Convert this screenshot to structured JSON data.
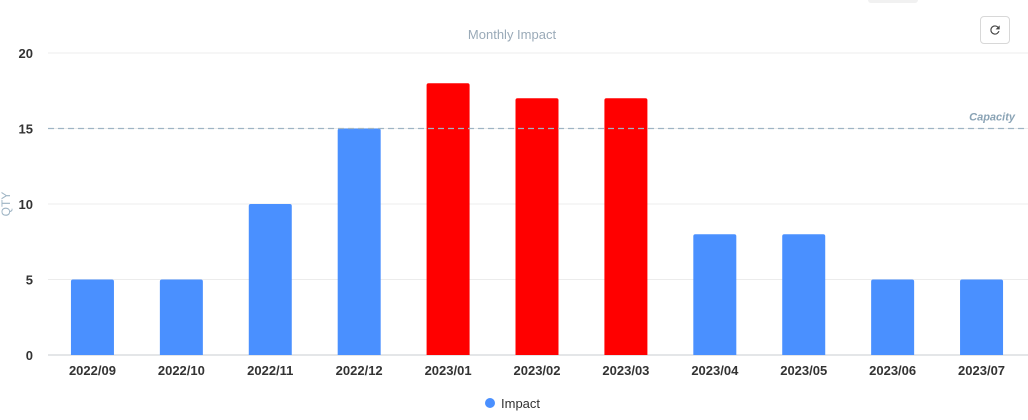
{
  "toolbar": {
    "refresh_icon": "refresh-icon"
  },
  "chart_data": {
    "type": "bar",
    "title": "Monthly Impact",
    "xlabel": "",
    "ylabel": "QTY",
    "categories": [
      "2022/09",
      "2022/10",
      "2022/11",
      "2022/12",
      "2023/01",
      "2023/02",
      "2023/03",
      "2023/04",
      "2023/05",
      "2023/06",
      "2023/07"
    ],
    "series": [
      {
        "name": "Impact",
        "values": [
          5,
          5,
          10,
          15,
          18,
          17,
          17,
          8,
          8,
          5,
          5
        ]
      }
    ],
    "ylim": [
      0,
      20
    ],
    "yticks": [
      0,
      5,
      10,
      15,
      20
    ],
    "reference_line": {
      "label": "Capacity",
      "value": 15,
      "color": "#9eb4c4"
    },
    "colors": {
      "normal": "#4a90ff",
      "over_capacity": "#ff0000"
    },
    "grid": true,
    "legend_position": "bottom-center"
  }
}
